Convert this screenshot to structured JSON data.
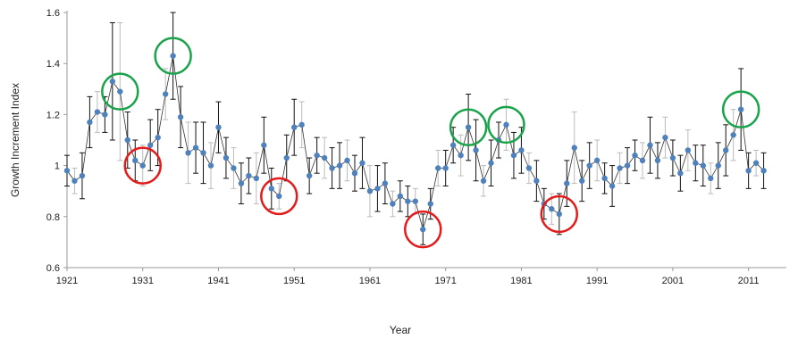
{
  "chart_data": {
    "type": "scatter",
    "xlabel": "Year",
    "ylabel": "Growth Increment Index",
    "xlim": [
      1921,
      2016
    ],
    "ylim": [
      0.6,
      1.6
    ],
    "x_ticks": [
      1921,
      1931,
      1941,
      1951,
      1961,
      1971,
      1981,
      1991,
      2001,
      2011
    ],
    "x_tick_labels": [
      "1921",
      "1931",
      "1941",
      "1951",
      "1961",
      "1971",
      "1981",
      "1991",
      "2001",
      "2011"
    ],
    "y_ticks": [
      0.6,
      0.8,
      1.0,
      1.2,
      1.4,
      1.6
    ],
    "y_tick_labels": [
      "0.6",
      "0.8",
      "1",
      "1.2",
      "1.4",
      "1.6"
    ],
    "grid": false,
    "colors": {
      "point": "#4f81bd",
      "line": "#333333",
      "errorbar_dark": "#111111",
      "errorbar_light": "#bbbbbb",
      "high_circle": "#1aa34a",
      "low_circle": "#e31b1b",
      "axis": "#999999"
    },
    "series": [
      {
        "x": [
          1921,
          1922,
          1923,
          1924,
          1925,
          1926,
          1927,
          1928,
          1929,
          1930,
          1931,
          1932,
          1933,
          1934,
          1935,
          1936,
          1937,
          1938,
          1939,
          1940,
          1941,
          1942,
          1943,
          1944,
          1945,
          1946,
          1947,
          1948,
          1949,
          1950,
          1951,
          1952,
          1953,
          1954,
          1955,
          1956,
          1957,
          1958,
          1959,
          1960,
          1961,
          1962,
          1963,
          1964,
          1965,
          1966,
          1967,
          1968,
          1969,
          1970,
          1971,
          1972,
          1973,
          1974,
          1975,
          1976,
          1977,
          1978,
          1979,
          1980,
          1981,
          1982,
          1983,
          1984,
          1985,
          1986,
          1987,
          1988,
          1989,
          1990,
          1991,
          1992,
          1993,
          1994,
          1995,
          1996,
          1997,
          1998,
          1999,
          2000,
          2001,
          2002,
          2003,
          2004,
          2005,
          2006,
          2007,
          2008,
          2009,
          2010,
          2011,
          2012,
          2013
        ],
        "y": [
          0.98,
          0.94,
          0.96,
          1.17,
          1.21,
          1.2,
          1.33,
          1.29,
          1.1,
          1.02,
          1.0,
          1.08,
          1.11,
          1.28,
          1.43,
          1.19,
          1.05,
          1.07,
          1.05,
          1.0,
          1.15,
          1.03,
          0.99,
          0.93,
          0.96,
          0.95,
          1.08,
          0.91,
          0.88,
          1.03,
          1.15,
          1.16,
          0.96,
          1.04,
          1.03,
          0.99,
          1.0,
          1.02,
          0.97,
          1.01,
          0.9,
          0.91,
          0.93,
          0.85,
          0.88,
          0.86,
          0.86,
          0.75,
          0.85,
          0.99,
          0.99,
          1.08,
          1.04,
          1.15,
          1.06,
          0.94,
          1.01,
          1.1,
          1.16,
          1.04,
          1.06,
          0.99,
          0.94,
          0.85,
          0.83,
          0.81,
          0.93,
          1.07,
          0.94,
          1.0,
          1.02,
          0.95,
          0.92,
          0.99,
          1.0,
          1.04,
          1.02,
          1.08,
          1.02,
          1.11,
          1.03,
          0.97,
          1.06,
          1.01,
          1.0,
          0.95,
          1.0,
          1.06,
          1.12,
          1.22,
          0.98,
          1.01,
          0.98
        ],
        "error": [
          0.06,
          0.05,
          0.09,
          0.1,
          0.08,
          0.07,
          0.23,
          0.27,
          0.11,
          0.08,
          0.08,
          0.1,
          0.11,
          0.1,
          0.17,
          0.12,
          0.12,
          0.1,
          0.12,
          0.09,
          0.1,
          0.08,
          0.08,
          0.08,
          0.07,
          0.1,
          0.11,
          0.08,
          0.05,
          0.09,
          0.11,
          0.09,
          0.07,
          0.07,
          0.08,
          0.08,
          0.09,
          0.08,
          0.07,
          0.1,
          0.1,
          0.09,
          0.08,
          0.05,
          0.06,
          0.06,
          0.05,
          0.06,
          0.06,
          0.07,
          0.07,
          0.07,
          0.08,
          0.13,
          0.12,
          0.06,
          0.09,
          0.07,
          0.1,
          0.09,
          0.09,
          0.06,
          0.08,
          0.06,
          0.06,
          0.08,
          0.09,
          0.14,
          0.08,
          0.09,
          0.08,
          0.06,
          0.08,
          0.06,
          0.07,
          0.06,
          0.07,
          0.11,
          0.07,
          0.08,
          0.07,
          0.07,
          0.08,
          0.07,
          0.08,
          0.06,
          0.09,
          0.1,
          0.1,
          0.16,
          0.07,
          0.05,
          0.07
        ]
      }
    ],
    "highlighted_high_years": [
      1928,
      1935,
      1974,
      1979,
      2010
    ],
    "highlighted_low_years": [
      1931,
      1949,
      1968,
      1986
    ]
  }
}
